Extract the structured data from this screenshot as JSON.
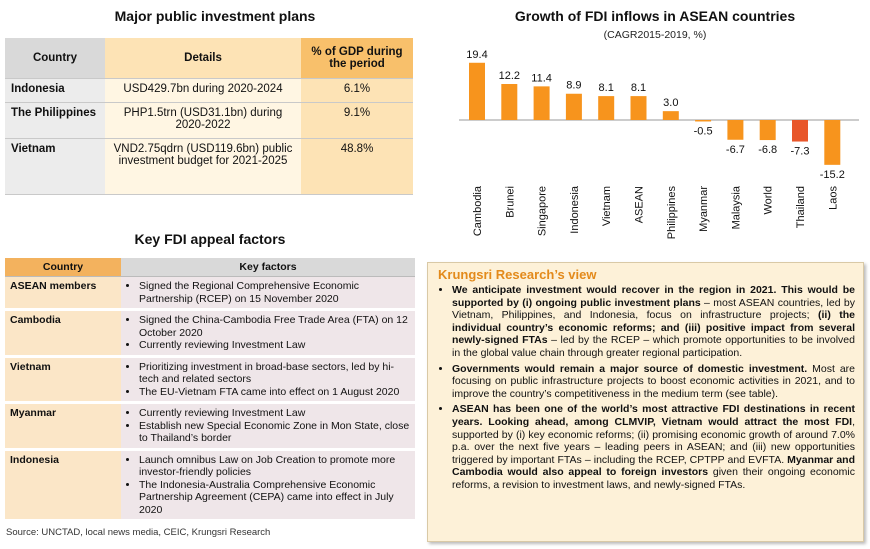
{
  "investment_plans": {
    "title": "Major public investment plans",
    "headers": [
      "Country",
      "Details",
      "% of GDP during the period"
    ],
    "rows": [
      {
        "country": "Indonesia",
        "details": "USD429.7bn during 2020-2024",
        "gdp": "6.1%"
      },
      {
        "country": "The Philippines",
        "details": "PHP1.5trn (USD31.1bn) during 2020-2022",
        "gdp": "9.1%"
      },
      {
        "country": "Vietnam",
        "details": "VND2.75qdrn (USD119.6bn) public investment budget for 2021-2025",
        "gdp": "48.8%"
      }
    ]
  },
  "key_factors": {
    "title": "Key FDI appeal factors",
    "headers": [
      "Country",
      "Key factors"
    ],
    "rows": [
      {
        "country": "ASEAN members",
        "items": [
          "Signed the Regional Comprehensive Economic Partnership (RCEP) on 15 November 2020"
        ]
      },
      {
        "country": "Cambodia",
        "items": [
          "Signed the China-Cambodia Free Trade Area (FTA) on 12 October 2020",
          "Currently reviewing Investment Law"
        ]
      },
      {
        "country": "Vietnam",
        "items": [
          "Prioritizing investment in broad-base sectors, led by hi-tech and related sectors",
          "The EU-Vietnam FTA came into effect on 1 August 2020"
        ]
      },
      {
        "country": "Myanmar",
        "items": [
          "Currently reviewing Investment Law",
          "Establish new Special Economic Zone in Mon State, close to Thailand’s border"
        ]
      },
      {
        "country": "Indonesia",
        "items": [
          "Launch omnibus Law on Job Creation to promote more investor-friendly policies",
          "The Indonesia-Australia Comprehensive Economic Partnership Agreement (CEPA) came into effect in July 2020"
        ]
      }
    ]
  },
  "source": "Source: UNCTAD, local news media, CEIC, Krungsri Research",
  "chart_data": {
    "type": "bar",
    "title": "Growth of FDI inflows in ASEAN countries",
    "subtitle": "(CAGR2015-2019, %)",
    "categories": [
      "Cambodia",
      "Brunei",
      "Singapore",
      "Indonesia",
      "Vietnam",
      "ASEAN",
      "Philippines",
      "Myanmar",
      "Malaysia",
      "World",
      "Thailand",
      "Laos"
    ],
    "values": [
      19.4,
      12.2,
      11.4,
      8.9,
      8.1,
      8.1,
      3.0,
      -0.5,
      -6.7,
      -6.8,
      -7.3,
      -15.2
    ],
    "value_labels": [
      "19.4",
      "12.2",
      "11.4",
      "8.9",
      "8.1",
      "8.1",
      "3.0",
      "-0.5",
      "-6.7",
      "-6.8",
      "-7.3",
      "-15.2"
    ],
    "colors": {
      "default": "#f7941d",
      "highlight": "#e8562a"
    },
    "highlight": "Thailand",
    "xlabel": "",
    "ylabel": "",
    "ylim": [
      -16,
      20
    ],
    "grid": false
  },
  "view": {
    "title": "Krungsri Research’s view",
    "bullets": [
      [
        {
          "t": "We anticipate investment would recover in the region in 2021. This would be supported by (i) ongoing public investment plans",
          "b": true
        },
        {
          "t": " – most ASEAN countries, led by Vietnam, Philippines, and Indonesia, focus on infrastructure projects; ",
          "b": false
        },
        {
          "t": "(ii) the individual country’s economic reforms; and (iii) positive impact from several newly-signed FTAs",
          "b": true
        },
        {
          "t": " – led by the RCEP – which promote opportunities to be involved in the global value chain through greater regional participation.",
          "b": false
        }
      ],
      [
        {
          "t": "Governments would remain a major source of domestic investment.",
          "b": true
        },
        {
          "t": " Most are focusing on public infrastructure projects to boost economic activities in 2021, and to improve the country’s competitiveness in the medium term (see table).",
          "b": false
        }
      ],
      [
        {
          "t": "ASEAN has been one of the world’s most attractive FDI destinations in recent years. Looking ahead, among CLMVIP, Vietnam would attract the most FDI",
          "b": true
        },
        {
          "t": ", supported by (i) key economic reforms; (ii) promising economic growth of around 7.0% p.a. over the next five years – leading peers in ASEAN; and (iii) new opportunities triggered by important FTAs – including the RCEP, CPTPP and EVFTA. ",
          "b": false
        },
        {
          "t": "Myanmar and Cambodia would also appeal to foreign investors",
          "b": true
        },
        {
          "t": " given their ongoing economic reforms, a revision to investment laws, and newly-signed FTAs.",
          "b": false
        }
      ]
    ]
  }
}
